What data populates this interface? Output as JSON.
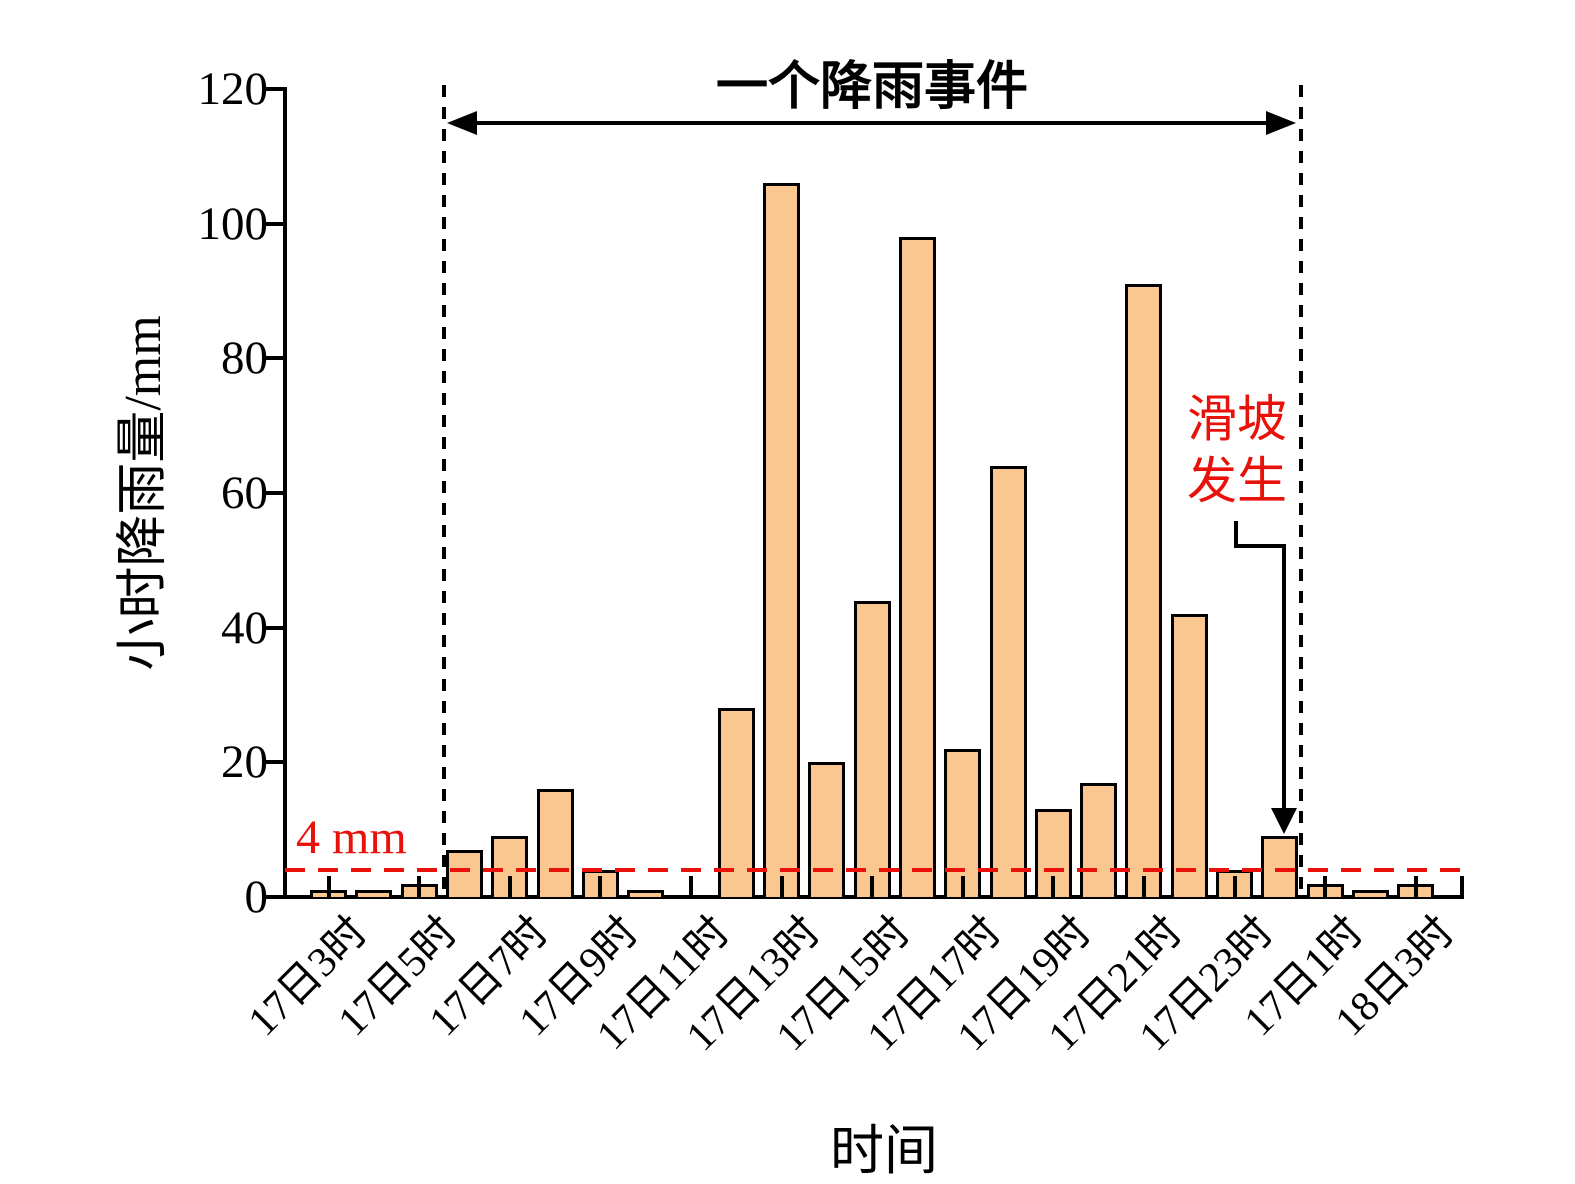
{
  "chart_data": {
    "type": "bar",
    "xlabel": "时间",
    "ylabel": "小时降雨量/mm",
    "ylim": [
      0,
      120
    ],
    "yticks": [
      0,
      20,
      40,
      60,
      80,
      100,
      120
    ],
    "ytick_labels": [
      "0",
      "20",
      "40",
      "60",
      "80",
      "100",
      "120"
    ],
    "x_tick_labels": [
      "17日3时",
      "17日5时",
      "17日7时",
      "17日9时",
      "17日11时",
      "17日13时",
      "17日15时",
      "17日17时",
      "17日19时",
      "17日21时",
      "17日23时",
      "17日1时",
      "18日3时"
    ],
    "tick_every_n_bars": 2,
    "values": [
      1,
      1,
      2,
      7,
      9,
      16,
      4,
      1,
      0,
      28,
      106,
      20,
      44,
      98,
      22,
      64,
      13,
      17,
      91,
      42,
      4,
      9,
      2,
      1,
      2
    ],
    "grid": false,
    "legend": null,
    "bar_color": "#fbc791",
    "bar_edge_color": "#000000",
    "annotation_red": "#e8120b",
    "threshold": {
      "value": 4,
      "label": "4 mm"
    },
    "event": {
      "label": "一个降雨事件",
      "start_bar_index": 3,
      "end_bar_index": 21
    },
    "landslide": {
      "label_line1": "滑坡",
      "label_line2": "发生",
      "points_to_bar_index": 21
    }
  }
}
